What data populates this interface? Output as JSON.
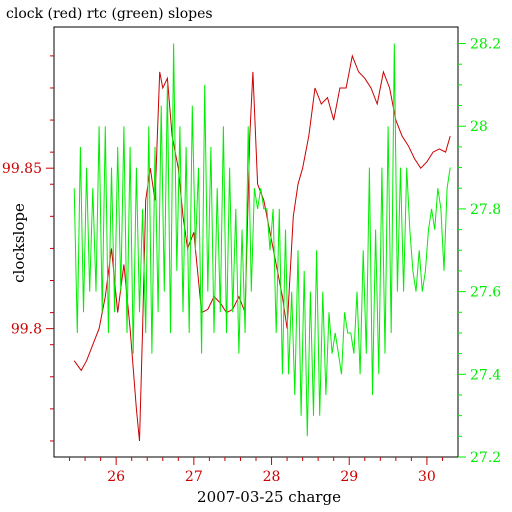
{
  "title": "clock (red) rtc (green) slopes",
  "xlabel": "2007-03-25 charge",
  "ylabel_left": "clockslope",
  "colors": {
    "left": "#cc0000",
    "right": "#00ee00",
    "axis": "#000000"
  },
  "chart_data": {
    "type": "line",
    "title": "clock (red) rtc (green) slopes",
    "xlabel": "2007-03-25 charge",
    "ylabel": "clockslope",
    "xlim": [
      25.2,
      30.4
    ],
    "ylim": [
      99.76,
      99.894
    ],
    "y2lim": [
      27.2,
      28.24
    ],
    "x_ticks": [
      26,
      27,
      28,
      29,
      30
    ],
    "y_ticks": [
      99.8,
      99.85
    ],
    "y2_ticks": [
      27.2,
      27.4,
      27.6,
      27.8,
      28,
      28.2
    ],
    "x_tick_labels": [
      "26",
      "27",
      "28",
      "29",
      "30"
    ],
    "y_tick_labels": [
      "99.8",
      "99.85"
    ],
    "y2_tick_labels": [
      "27.2",
      "27.4",
      "27.6",
      "27.8",
      "28",
      "28.2"
    ],
    "grid": false,
    "series": [
      {
        "name": "clock",
        "axis": "left",
        "color": "#cc0000",
        "x": [
          25.46,
          25.55,
          25.62,
          25.7,
          25.78,
          25.86,
          25.94,
          26.02,
          26.1,
          26.18,
          26.26,
          26.3,
          26.34,
          26.38,
          26.44,
          26.5,
          26.56,
          26.6,
          26.66,
          26.72,
          26.8,
          26.86,
          26.92,
          27.0,
          27.06,
          27.1,
          27.18,
          27.26,
          27.34,
          27.42,
          27.5,
          27.58,
          27.66,
          27.72,
          27.76,
          27.82,
          27.9,
          27.98,
          28.06,
          28.14,
          28.2,
          28.28,
          28.34,
          28.4,
          28.48,
          28.56,
          28.64,
          28.72,
          28.8,
          28.88,
          28.96,
          29.04,
          29.12,
          29.2,
          29.28,
          29.36,
          29.44,
          29.52,
          29.6,
          29.68,
          29.76,
          29.84,
          29.92,
          30.0,
          30.08,
          30.16,
          30.24,
          30.3
        ],
        "y": [
          99.79,
          99.787,
          99.79,
          99.795,
          99.8,
          99.81,
          99.825,
          99.805,
          99.82,
          99.8,
          99.775,
          99.765,
          99.8,
          99.84,
          99.85,
          99.84,
          99.88,
          99.875,
          99.878,
          99.86,
          99.85,
          99.835,
          99.825,
          99.83,
          99.815,
          99.805,
          99.806,
          99.81,
          99.808,
          99.805,
          99.806,
          99.81,
          99.805,
          99.86,
          99.88,
          99.845,
          99.84,
          99.83,
          99.82,
          99.81,
          99.8,
          99.835,
          99.845,
          99.85,
          99.86,
          99.875,
          99.87,
          99.872,
          99.865,
          99.875,
          99.875,
          99.885,
          99.88,
          99.878,
          99.875,
          99.87,
          99.88,
          99.875,
          99.865,
          99.86,
          99.857,
          99.853,
          99.85,
          99.852,
          99.855,
          99.856,
          99.855,
          99.86
        ]
      },
      {
        "name": "rtc",
        "axis": "right",
        "color": "#00ee00",
        "x": [
          25.46,
          25.5,
          25.54,
          25.58,
          25.62,
          25.66,
          25.7,
          25.74,
          25.78,
          25.82,
          25.86,
          25.9,
          25.94,
          25.98,
          26.02,
          26.06,
          26.1,
          26.14,
          26.18,
          26.22,
          26.26,
          26.3,
          26.34,
          26.38,
          26.42,
          26.46,
          26.5,
          26.54,
          26.58,
          26.62,
          26.66,
          26.7,
          26.74,
          26.78,
          26.82,
          26.86,
          26.9,
          26.94,
          26.98,
          27.02,
          27.06,
          27.1,
          27.14,
          27.18,
          27.22,
          27.26,
          27.3,
          27.34,
          27.38,
          27.42,
          27.46,
          27.5,
          27.54,
          27.58,
          27.62,
          27.66,
          27.7,
          27.74,
          27.78,
          27.82,
          27.86,
          27.9,
          27.94,
          27.98,
          28.02,
          28.06,
          28.1,
          28.14,
          28.18,
          28.22,
          28.26,
          28.3,
          28.34,
          28.38,
          28.42,
          28.46,
          28.5,
          28.54,
          28.58,
          28.62,
          28.66,
          28.7,
          28.74,
          28.78,
          28.82,
          28.86,
          28.9,
          28.94,
          28.98,
          29.02,
          29.06,
          29.1,
          29.14,
          29.18,
          29.22,
          29.26,
          29.3,
          29.34,
          29.38,
          29.42,
          29.46,
          29.5,
          29.54,
          29.58,
          29.62,
          29.66,
          29.7,
          29.74,
          29.78,
          29.82,
          29.86,
          29.9,
          29.94,
          29.98,
          30.02,
          30.06,
          30.1,
          30.14,
          30.18,
          30.22,
          30.26,
          30.3
        ],
        "y": [
          27.85,
          27.5,
          27.95,
          27.55,
          27.9,
          27.6,
          27.85,
          27.6,
          28.0,
          27.55,
          28.0,
          27.5,
          27.9,
          27.55,
          27.95,
          27.6,
          28.0,
          27.5,
          27.95,
          27.45,
          27.9,
          27.55,
          27.8,
          27.5,
          28.0,
          27.45,
          27.95,
          27.55,
          28.05,
          27.6,
          28.1,
          27.5,
          28.2,
          27.65,
          28.0,
          27.55,
          27.95,
          27.5,
          28.05,
          27.7,
          27.9,
          27.45,
          28.1,
          27.6,
          27.95,
          27.5,
          27.85,
          27.55,
          28.0,
          27.5,
          27.9,
          27.55,
          27.8,
          27.45,
          27.75,
          27.5,
          28.0,
          27.6,
          27.85,
          27.8,
          27.85,
          27.8,
          27.8,
          27.7,
          27.8,
          27.5,
          27.8,
          27.4,
          27.75,
          27.4,
          27.6,
          27.35,
          27.7,
          27.3,
          27.65,
          27.25,
          27.6,
          27.3,
          27.7,
          27.3,
          27.6,
          27.35,
          27.55,
          27.45,
          27.5,
          27.45,
          27.4,
          27.55,
          27.5,
          27.5,
          27.45,
          27.6,
          27.4,
          27.7,
          27.45,
          27.9,
          27.35,
          27.75,
          27.4,
          27.9,
          27.45,
          28.0,
          27.5,
          28.2,
          27.6,
          27.9,
          27.6,
          27.9,
          27.75,
          27.65,
          27.6,
          27.7,
          27.6,
          27.65,
          27.75,
          27.8,
          27.75,
          27.85,
          27.8,
          27.65,
          27.85,
          27.9
        ]
      }
    ]
  }
}
